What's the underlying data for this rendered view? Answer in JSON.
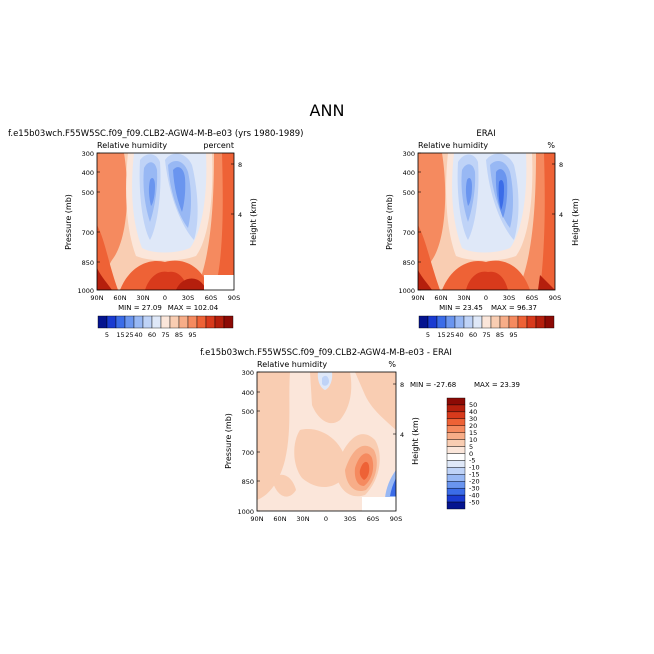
{
  "page": {
    "title": "ANN"
  },
  "colorscale_abs": {
    "colors": [
      "#05148f",
      "#1a3bd1",
      "#3b6ce8",
      "#6a95ef",
      "#98b8f4",
      "#bfd3f7",
      "#dfe8f8",
      "#fbe6da",
      "#f9cdb2",
      "#f7ad88",
      "#f58a5f",
      "#ee6236",
      "#d83a1c",
      "#b51f0d",
      "#8c0a05"
    ],
    "labels": [
      "5",
      "15",
      "25",
      "40",
      "60",
      "75",
      "85",
      "95"
    ]
  },
  "colorscale_diff": {
    "colors": [
      "#8c0a05",
      "#b51f0d",
      "#d83a1c",
      "#ee6236",
      "#f58a5f",
      "#f7ad88",
      "#f9cdb2",
      "#fbe6da",
      "#ffffff",
      "#dfe8f8",
      "#bfd3f7",
      "#98b8f4",
      "#6a95ef",
      "#3b6ce8",
      "#1a3bd1",
      "#05148f"
    ],
    "labels": [
      "50",
      "40",
      "30",
      "20",
      "15",
      "10",
      "5",
      "0",
      "-5",
      "-10",
      "-15",
      "-20",
      "-30",
      "-40",
      "-50"
    ]
  },
  "chart_data": [
    {
      "type": "heatmap",
      "title": "f.e15b03wch.F55W5SC.f09_f09.CLB2-AGW4-M-B-e03 (yrs 1980-1989)",
      "left_label": "Relative humidity",
      "right_label": "percent",
      "xlabel": "",
      "ylabel": "Pressure (mb)",
      "y2label": "Height (km)",
      "x_ticks": [
        "90N",
        "60N",
        "30N",
        "0",
        "30S",
        "60S",
        "90S"
      ],
      "y_ticks": [
        "300",
        "400",
        "500",
        "700",
        "850",
        "1000"
      ],
      "y2_ticks": [
        "8",
        "4"
      ],
      "xlim": [
        90,
        -90
      ],
      "ylim": [
        1000,
        300
      ],
      "min_label": "MIN = 27.09",
      "max_label": "MAX = 102.04",
      "fields": [
        {
          "lat": 0,
          "p": 300,
          "value": 70
        },
        {
          "lat": 30,
          "p": 480,
          "value": 35
        },
        {
          "lat": -15,
          "p": 450,
          "value": 30
        },
        {
          "lat": 5,
          "p": 400,
          "value": 55
        },
        {
          "lat": 0,
          "p": 900,
          "value": 85
        },
        {
          "lat": 70,
          "p": 950,
          "value": 95
        },
        {
          "lat": -60,
          "p": 900,
          "value": 90
        }
      ]
    },
    {
      "type": "heatmap",
      "title": "ERAI",
      "left_label": "Relative humidity",
      "right_label": "%",
      "xlabel": "",
      "ylabel": "Pressure (mb)",
      "y2label": "Height (km)",
      "x_ticks": [
        "90N",
        "60N",
        "30N",
        "0",
        "30S",
        "60S",
        "90S"
      ],
      "y_ticks": [
        "300",
        "400",
        "500",
        "700",
        "850",
        "1000"
      ],
      "y2_ticks": [
        "8",
        "4"
      ],
      "xlim": [
        90,
        -90
      ],
      "ylim": [
        1000,
        300
      ],
      "min_label": "MIN = 23.45",
      "max_label": "MAX = 96.37",
      "fields": [
        {
          "lat": 0,
          "p": 300,
          "value": 65
        },
        {
          "lat": 25,
          "p": 480,
          "value": 35
        },
        {
          "lat": -15,
          "p": 450,
          "value": 25
        },
        {
          "lat": 5,
          "p": 400,
          "value": 55
        },
        {
          "lat": 0,
          "p": 900,
          "value": 85
        },
        {
          "lat": 60,
          "p": 950,
          "value": 92
        },
        {
          "lat": -60,
          "p": 900,
          "value": 90
        }
      ]
    },
    {
      "type": "heatmap",
      "title": "f.e15b03wch.F55W5SC.f09_f09.CLB2-AGW4-M-B-e03 - ERAI",
      "left_label": "Relative humidity",
      "right_label": "%",
      "xlabel": "",
      "ylabel": "Pressure (mb)",
      "y2label": "Height (km)",
      "x_ticks": [
        "90N",
        "60N",
        "30N",
        "0",
        "30S",
        "60S",
        "90S"
      ],
      "y_ticks": [
        "300",
        "400",
        "500",
        "700",
        "850",
        "1000"
      ],
      "y2_ticks": [
        "8",
        "4"
      ],
      "xlim": [
        90,
        -90
      ],
      "ylim": [
        1000,
        300
      ],
      "min_label": "MIN = -27.68",
      "max_label": "MAX = 23.39",
      "fields": [
        {
          "lat": 0,
          "p": 650,
          "value": 5
        },
        {
          "lat": -45,
          "p": 780,
          "value": 20
        },
        {
          "lat": -80,
          "p": 900,
          "value": -20
        },
        {
          "lat": 5,
          "p": 320,
          "value": -5
        }
      ]
    }
  ]
}
